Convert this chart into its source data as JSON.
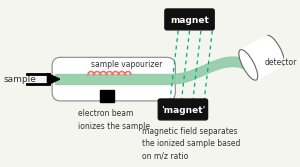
{
  "bg_color": "#f5f5f0",
  "sample_label": "sample",
  "vapourizer_label": "sample vapourizer",
  "electron_beam_label": "electron beam\nionizes the sample",
  "magnet_top_label": "magnet",
  "magnet_bottom_label": "'magnet'",
  "detector_label": "detector",
  "field_label": "magnetic field separates\nthe ionized sample based\non m/z ratio",
  "beam_color": "#90cca8",
  "coil_color": "#ff6666",
  "dashed_line_color": "#00aa77",
  "magnet_box_color": "#111111",
  "magnet_text_color": "#ffffff",
  "text_color": "#333333"
}
